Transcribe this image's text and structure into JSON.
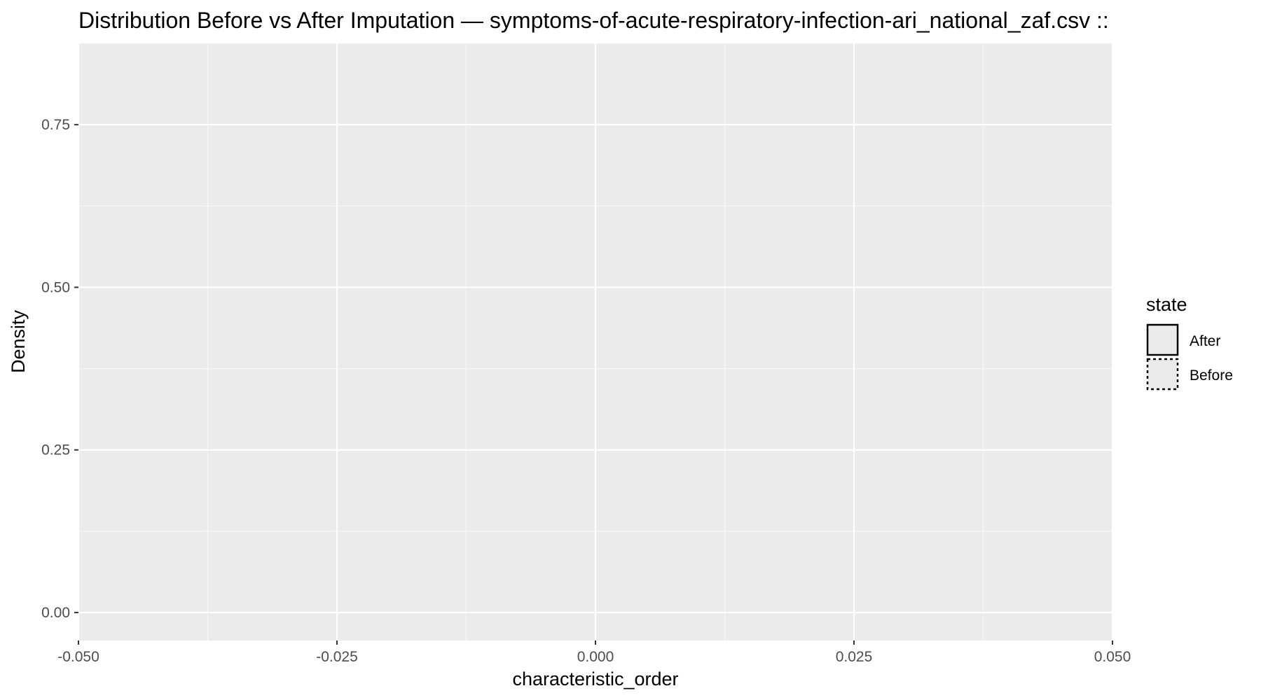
{
  "chart_data": {
    "type": "area",
    "title": "Distribution Before vs After Imputation — symptoms-of-acute-respiratory-infection-ari_national_zaf.csv ::",
    "xlabel": "characteristic_order",
    "ylabel": "Density",
    "xlim": [
      -0.05,
      0.05
    ],
    "ylim": [
      -0.043,
      0.875
    ],
    "x_ticks": [
      -0.05,
      -0.025,
      0.0,
      0.025,
      0.05
    ],
    "x_tick_labels": [
      "-0.050",
      "-0.025",
      "0.000",
      "0.025",
      "0.050"
    ],
    "y_ticks": [
      0.0,
      0.25,
      0.5,
      0.75
    ],
    "y_tick_labels": [
      "0.00",
      "0.25",
      "0.50",
      "0.75"
    ],
    "grid": true,
    "legend": {
      "title": "state",
      "position": "right",
      "entries": [
        {
          "label": "After",
          "linetype": "solid"
        },
        {
          "label": "Before",
          "linetype": "dotted"
        }
      ]
    },
    "series": [
      {
        "name": "After",
        "x": [],
        "y": []
      },
      {
        "name": "Before",
        "x": [],
        "y": []
      }
    ]
  }
}
